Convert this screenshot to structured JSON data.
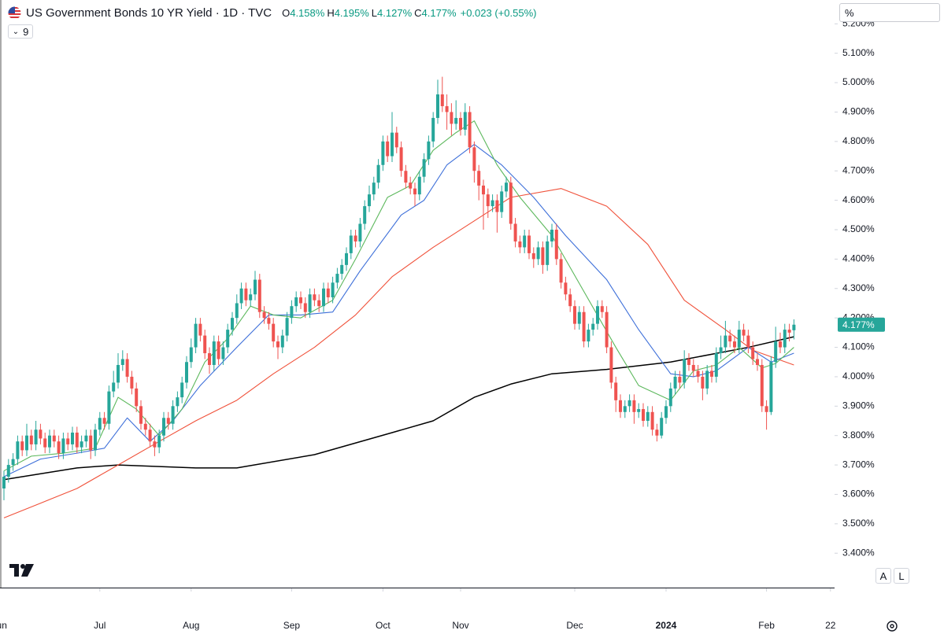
{
  "chart_data": {
    "type": "candlestick",
    "title": "US Government Bonds 10 YR Yield · 1D · TVC",
    "ohlc_legend": [
      {
        "key": "O",
        "value": "4.158%"
      },
      {
        "key": "H",
        "value": "4.195%"
      },
      {
        "key": "L",
        "value": "4.127%"
      },
      {
        "key": "C",
        "value": "4.177%"
      }
    ],
    "change_label": "+0.023 (+0.55%)",
    "last_price_label": "4.177%",
    "up_color": "#26a69a",
    "down_color": "#ef5350",
    "grid": false,
    "xlim": [
      -0.862,
      181.9
    ],
    "xticks": [
      {
        "value": -1,
        "label": "Jun"
      },
      {
        "value": 21,
        "label": "Jul"
      },
      {
        "value": 41,
        "label": "Aug"
      },
      {
        "value": 63,
        "label": "Sep"
      },
      {
        "value": 83,
        "label": "Oct"
      },
      {
        "value": 100,
        "label": "Nov"
      },
      {
        "value": 125,
        "label": "Dec"
      },
      {
        "value": 145,
        "label": "2024"
      },
      {
        "value": 167,
        "label": "Feb"
      },
      {
        "value": 181,
        "label": "22"
      }
    ],
    "ylim": [
      3.283,
      5.281
    ],
    "yticks": [
      {
        "value": 3.4,
        "label": "3.400%"
      },
      {
        "value": 3.5,
        "label": "3.500%"
      },
      {
        "value": 3.6,
        "label": "3.600%"
      },
      {
        "value": 3.7,
        "label": "3.700%"
      },
      {
        "value": 3.8,
        "label": "3.800%"
      },
      {
        "value": 3.9,
        "label": "3.900%"
      },
      {
        "value": 4.0,
        "label": "4.000%"
      },
      {
        "value": 4.1,
        "label": "4.100%"
      },
      {
        "value": 4.2,
        "label": "4.200%"
      },
      {
        "value": 4.3,
        "label": "4.300%"
      },
      {
        "value": 4.4,
        "label": "4.400%"
      },
      {
        "value": 4.5,
        "label": "4.500%"
      },
      {
        "value": 4.6,
        "label": "4.600%"
      },
      {
        "value": 4.7,
        "label": "4.700%"
      },
      {
        "value": 4.8,
        "label": "4.800%"
      },
      {
        "value": 4.9,
        "label": "4.900%"
      },
      {
        "value": 5.0,
        "label": "5.000%"
      },
      {
        "value": 5.1,
        "label": "5.100%"
      },
      {
        "value": 5.2,
        "label": "5.200%"
      }
    ],
    "x": [
      0,
      1,
      2,
      3,
      4,
      5,
      6,
      7,
      8,
      9,
      10,
      11,
      12,
      13,
      14,
      15,
      16,
      17,
      18,
      19,
      20,
      21,
      22,
      23,
      24,
      25,
      26,
      27,
      28,
      29,
      30,
      31,
      32,
      33,
      34,
      35,
      36,
      37,
      38,
      39,
      40,
      41,
      42,
      43,
      44,
      45,
      46,
      47,
      48,
      49,
      50,
      51,
      52,
      53,
      54,
      55,
      56,
      57,
      58,
      59,
      60,
      61,
      62,
      63,
      64,
      65,
      66,
      67,
      68,
      69,
      70,
      71,
      72,
      73,
      74,
      75,
      76,
      77,
      78,
      79,
      80,
      81,
      82,
      83,
      84,
      85,
      86,
      87,
      88,
      89,
      90,
      91,
      92,
      93,
      94,
      95,
      96,
      97,
      98,
      99,
      100,
      101,
      102,
      103,
      104,
      105,
      106,
      107,
      108,
      109,
      110,
      111,
      112,
      113,
      114,
      115,
      116,
      117,
      118,
      119,
      120,
      121,
      122,
      123,
      124,
      125,
      126,
      127,
      128,
      129,
      130,
      131,
      132,
      133,
      134,
      135,
      136,
      137,
      138,
      139,
      140,
      141,
      142,
      143,
      144,
      145,
      146,
      147,
      148,
      149,
      150,
      151,
      152,
      153,
      154,
      155,
      156,
      157,
      158,
      159,
      160,
      161,
      162,
      163,
      164,
      165,
      166,
      167,
      168,
      169,
      170,
      171,
      172,
      173
    ],
    "open": [
      3.62,
      3.66,
      3.7,
      3.72,
      3.78,
      3.75,
      3.8,
      3.77,
      3.82,
      3.79,
      3.76,
      3.8,
      3.78,
      3.74,
      3.79,
      3.77,
      3.81,
      3.76,
      3.78,
      3.8,
      3.75,
      3.82,
      3.86,
      3.84,
      3.95,
      3.98,
      4.04,
      4.06,
      4.0,
      3.96,
      3.9,
      3.84,
      3.82,
      3.78,
      3.76,
      3.8,
      3.86,
      3.84,
      3.9,
      3.93,
      3.98,
      4.05,
      4.1,
      4.18,
      4.14,
      4.08,
      4.04,
      4.12,
      4.06,
      4.1,
      4.16,
      4.2,
      4.25,
      4.3,
      4.26,
      4.28,
      4.33,
      4.22,
      4.2,
      4.18,
      4.12,
      4.1,
      4.14,
      4.2,
      4.24,
      4.27,
      4.25,
      4.22,
      4.28,
      4.26,
      4.24,
      4.3,
      4.27,
      4.32,
      4.35,
      4.38,
      4.42,
      4.48,
      4.46,
      4.52,
      4.58,
      4.62,
      4.66,
      4.72,
      4.8,
      4.75,
      4.83,
      4.78,
      4.7,
      4.66,
      4.64,
      4.62,
      4.68,
      4.74,
      4.8,
      4.88,
      4.96,
      4.92,
      4.9,
      4.86,
      4.88,
      4.84,
      4.9,
      4.78,
      4.7,
      4.65,
      4.62,
      4.58,
      4.6,
      4.56,
      4.63,
      4.66,
      4.52,
      4.46,
      4.44,
      4.48,
      4.42,
      4.4,
      4.44,
      4.38,
      4.46,
      4.5,
      4.4,
      4.32,
      4.28,
      4.24,
      4.18,
      4.22,
      4.12,
      4.16,
      4.18,
      4.24,
      4.22,
      4.1,
      3.98,
      3.92,
      3.88,
      3.9,
      3.92,
      3.88,
      3.89,
      3.85,
      3.88,
      3.82,
      3.8,
      3.86,
      3.9,
      3.96,
      4.0,
      3.98,
      4.06,
      4.04,
      4.02,
      4.0,
      3.96,
      4.02,
      4.0,
      4.08,
      4.1,
      4.14,
      4.12,
      4.1,
      4.16,
      4.14,
      4.1,
      4.06,
      4.04,
      3.9,
      3.88,
      4.05,
      4.12,
      4.1,
      4.16,
      4.158
    ],
    "high": [
      3.68,
      3.72,
      3.74,
      3.8,
      3.8,
      3.84,
      3.82,
      3.85,
      3.84,
      3.81,
      3.82,
      3.82,
      3.8,
      3.81,
      3.81,
      3.83,
      3.83,
      3.8,
      3.82,
      3.82,
      3.84,
      3.88,
      3.88,
      3.97,
      4.02,
      4.08,
      4.09,
      4.08,
      4.02,
      3.98,
      3.92,
      3.86,
      3.84,
      3.8,
      3.82,
      3.88,
      3.88,
      3.92,
      3.95,
      4.0,
      4.07,
      4.13,
      4.2,
      4.2,
      4.16,
      4.1,
      4.14,
      4.14,
      4.12,
      4.18,
      4.22,
      4.28,
      4.32,
      4.32,
      4.3,
      4.36,
      4.35,
      4.24,
      4.22,
      4.2,
      4.14,
      4.16,
      4.22,
      4.26,
      4.29,
      4.29,
      4.27,
      4.3,
      4.3,
      4.28,
      4.32,
      4.32,
      4.34,
      4.37,
      4.4,
      4.44,
      4.5,
      4.5,
      4.54,
      4.6,
      4.65,
      4.68,
      4.74,
      4.82,
      4.82,
      4.9,
      4.85,
      4.8,
      4.72,
      4.68,
      4.66,
      4.7,
      4.76,
      4.82,
      4.9,
      5.01,
      5.02,
      4.96,
      4.93,
      4.94,
      4.9,
      4.93,
      4.92,
      4.8,
      4.72,
      4.67,
      4.64,
      4.62,
      4.62,
      4.65,
      4.68,
      4.68,
      4.54,
      4.48,
      4.5,
      4.5,
      4.44,
      4.46,
      4.46,
      4.48,
      4.52,
      4.52,
      4.42,
      4.34,
      4.3,
      4.26,
      4.24,
      4.24,
      4.18,
      4.2,
      4.26,
      4.26,
      4.24,
      4.12,
      4.0,
      3.94,
      3.92,
      3.94,
      3.94,
      3.91,
      3.91,
      3.9,
      3.9,
      3.84,
      3.88,
      3.92,
      3.98,
      4.02,
      4.02,
      4.09,
      4.08,
      4.06,
      4.04,
      4.02,
      4.04,
      4.04,
      4.1,
      4.14,
      4.19,
      4.16,
      4.14,
      4.19,
      4.18,
      4.16,
      4.12,
      4.08,
      4.06,
      3.92,
      4.07,
      4.17,
      4.15,
      4.18,
      4.18,
      4.195
    ],
    "low": [
      3.58,
      3.64,
      3.68,
      3.7,
      3.73,
      3.73,
      3.75,
      3.75,
      3.77,
      3.74,
      3.74,
      3.76,
      3.72,
      3.72,
      3.75,
      3.75,
      3.74,
      3.74,
      3.76,
      3.72,
      3.73,
      3.8,
      3.82,
      3.82,
      3.93,
      3.96,
      4.02,
      3.98,
      3.94,
      3.88,
      3.82,
      3.8,
      3.76,
      3.73,
      3.74,
      3.78,
      3.82,
      3.82,
      3.88,
      3.91,
      3.96,
      4.03,
      4.08,
      4.12,
      4.06,
      4.01,
      4.02,
      4.04,
      4.04,
      4.08,
      4.14,
      4.18,
      4.23,
      4.24,
      4.24,
      4.26,
      4.2,
      4.18,
      4.16,
      4.1,
      4.06,
      4.08,
      4.12,
      4.18,
      4.22,
      4.23,
      4.2,
      4.2,
      4.24,
      4.22,
      4.22,
      4.25,
      4.25,
      4.3,
      4.33,
      4.36,
      4.4,
      4.44,
      4.44,
      4.5,
      4.56,
      4.6,
      4.64,
      4.7,
      4.73,
      4.73,
      4.76,
      4.68,
      4.64,
      4.62,
      4.58,
      4.6,
      4.66,
      4.72,
      4.78,
      4.86,
      4.9,
      4.84,
      4.82,
      4.84,
      4.82,
      4.82,
      4.76,
      4.66,
      4.6,
      4.5,
      4.54,
      4.56,
      4.49,
      4.54,
      4.61,
      4.5,
      4.44,
      4.42,
      4.42,
      4.4,
      4.37,
      4.38,
      4.35,
      4.36,
      4.44,
      4.38,
      4.3,
      4.26,
      4.22,
      4.16,
      4.16,
      4.1,
      4.1,
      4.14,
      4.16,
      4.2,
      4.08,
      3.96,
      3.88,
      3.86,
      3.86,
      3.88,
      3.84,
      3.86,
      3.83,
      3.83,
      3.8,
      3.78,
      3.79,
      3.84,
      3.88,
      3.94,
      3.96,
      3.96,
      4.02,
      4.0,
      3.98,
      3.92,
      3.94,
      3.98,
      3.98,
      4.06,
      4.08,
      4.1,
      4.08,
      4.08,
      4.12,
      4.08,
      4.04,
      4.02,
      3.88,
      3.82,
      3.87,
      4.03,
      4.08,
      4.08,
      4.12,
      4.127
    ],
    "close": [
      3.66,
      3.7,
      3.72,
      3.78,
      3.75,
      3.8,
      3.77,
      3.82,
      3.79,
      3.76,
      3.8,
      3.78,
      3.74,
      3.79,
      3.77,
      3.81,
      3.76,
      3.78,
      3.8,
      3.75,
      3.82,
      3.86,
      3.84,
      3.95,
      3.98,
      4.04,
      4.06,
      4.0,
      3.96,
      3.9,
      3.84,
      3.82,
      3.78,
      3.76,
      3.8,
      3.86,
      3.84,
      3.9,
      3.93,
      3.98,
      4.05,
      4.1,
      4.18,
      4.14,
      4.08,
      4.04,
      4.12,
      4.06,
      4.1,
      4.16,
      4.2,
      4.25,
      4.3,
      4.26,
      4.28,
      4.33,
      4.22,
      4.2,
      4.18,
      4.12,
      4.1,
      4.14,
      4.2,
      4.24,
      4.27,
      4.25,
      4.22,
      4.28,
      4.26,
      4.24,
      4.3,
      4.27,
      4.32,
      4.35,
      4.38,
      4.42,
      4.48,
      4.46,
      4.52,
      4.58,
      4.62,
      4.66,
      4.72,
      4.8,
      4.75,
      4.83,
      4.78,
      4.7,
      4.66,
      4.64,
      4.62,
      4.68,
      4.74,
      4.8,
      4.88,
      4.96,
      4.92,
      4.9,
      4.86,
      4.88,
      4.84,
      4.9,
      4.78,
      4.7,
      4.65,
      4.62,
      4.58,
      4.6,
      4.56,
      4.63,
      4.66,
      4.52,
      4.46,
      4.44,
      4.48,
      4.42,
      4.4,
      4.44,
      4.38,
      4.46,
      4.5,
      4.4,
      4.32,
      4.28,
      4.24,
      4.18,
      4.22,
      4.12,
      4.16,
      4.18,
      4.24,
      4.22,
      4.1,
      3.98,
      3.92,
      3.88,
      3.9,
      3.92,
      3.88,
      3.89,
      3.85,
      3.88,
      3.82,
      3.8,
      3.86,
      3.9,
      3.96,
      4.0,
      3.98,
      4.06,
      4.04,
      4.02,
      4.0,
      3.96,
      4.02,
      4.0,
      4.08,
      4.1,
      4.14,
      4.12,
      4.1,
      4.16,
      4.14,
      4.1,
      4.06,
      4.04,
      3.9,
      3.88,
      4.05,
      4.12,
      4.1,
      4.16,
      4.15,
      4.177
    ],
    "series": [
      {
        "color": "#000000",
        "x": [
          0,
          16,
          25,
          42,
          51,
          68,
          85,
          94,
          103,
          111,
          120,
          132,
          146,
          163,
          173
        ],
        "values": [
          3.65,
          3.69,
          3.7,
          3.69,
          3.69,
          3.735,
          3.81,
          3.85,
          3.93,
          3.975,
          4.01,
          4.025,
          4.05,
          4.1,
          4.136
        ]
      },
      {
        "color": "#f0513a",
        "x": [
          0,
          8,
          16,
          25,
          34,
          42,
          51,
          59,
          68,
          77,
          85,
          94,
          103,
          111,
          122,
          132,
          141,
          149,
          158,
          164,
          173
        ],
        "values": [
          3.52,
          3.57,
          3.62,
          3.7,
          3.78,
          3.85,
          3.92,
          4.01,
          4.1,
          4.21,
          4.34,
          4.44,
          4.53,
          4.61,
          4.64,
          4.58,
          4.45,
          4.26,
          4.16,
          4.09,
          4.04
        ]
      },
      {
        "color": "#3d6fd9",
        "x": [
          0,
          8,
          16,
          22,
          27,
          32,
          37,
          43,
          51,
          58,
          65,
          72,
          78,
          87,
          92,
          97,
          103,
          109,
          116,
          123,
          132,
          139,
          146,
          151,
          156,
          163,
          168,
          173
        ],
        "values": [
          3.66,
          3.72,
          3.74,
          3.757,
          3.86,
          3.78,
          3.85,
          3.97,
          4.1,
          4.21,
          4.21,
          4.22,
          4.36,
          4.55,
          4.6,
          4.72,
          4.79,
          4.72,
          4.61,
          4.48,
          4.33,
          4.16,
          4.01,
          4.0,
          4.02,
          4.1,
          4.05,
          4.08
        ]
      },
      {
        "color": "#5cb85c",
        "x": [
          0,
          6,
          13,
          20,
          25,
          29,
          34,
          39,
          44,
          49,
          54,
          59,
          65,
          72,
          77,
          84,
          89,
          94,
          99,
          103,
          108,
          113,
          120,
          127,
          134,
          139,
          146,
          151,
          156,
          161,
          166,
          169,
          173
        ],
        "values": [
          3.68,
          3.73,
          3.74,
          3.757,
          3.93,
          3.89,
          3.8,
          3.89,
          4.05,
          4.13,
          4.24,
          4.21,
          4.2,
          4.26,
          4.4,
          4.61,
          4.65,
          4.77,
          4.83,
          4.87,
          4.72,
          4.61,
          4.48,
          4.29,
          4.1,
          3.97,
          3.92,
          4.02,
          4.04,
          4.1,
          4.03,
          4.045,
          4.1
        ]
      }
    ]
  },
  "ui": {
    "indicator_count": "9",
    "scale_unit": "%",
    "auto_button": "A",
    "log_button": "L"
  }
}
